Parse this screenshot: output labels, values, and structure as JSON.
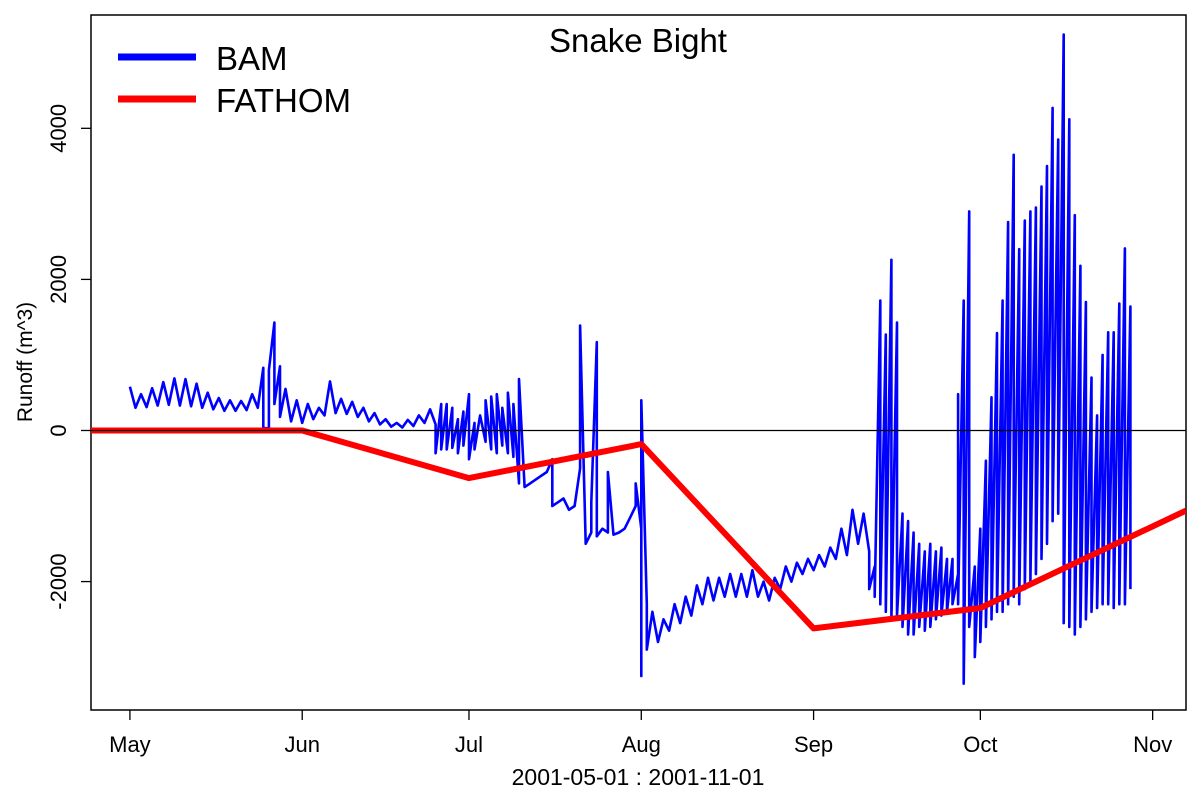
{
  "chart_data": {
    "type": "line",
    "title": "Snake Bight",
    "xlabel": "2001-05-01 : 2001-11-01",
    "ylabel": "Runoff (m^3)",
    "xlim": [
      "2001-04-24",
      "2001-11-07"
    ],
    "ylim": [
      -3700,
      5500
    ],
    "x_ticks": [
      {
        "date": "2001-05-01",
        "label": "May"
      },
      {
        "date": "2001-06-01",
        "label": "Jun"
      },
      {
        "date": "2001-07-01",
        "label": "Jul"
      },
      {
        "date": "2001-08-01",
        "label": "Aug"
      },
      {
        "date": "2001-09-01",
        "label": "Sep"
      },
      {
        "date": "2001-10-01",
        "label": "Oct"
      },
      {
        "date": "2001-11-01",
        "label": "Nov"
      }
    ],
    "y_ticks": [
      {
        "value": -2000,
        "label": "-2000"
      },
      {
        "value": 0,
        "label": "0"
      },
      {
        "value": 2000,
        "label": "2000"
      },
      {
        "value": 4000,
        "label": "4000"
      }
    ],
    "reference_line": 0,
    "legend_position": "top-left",
    "series": [
      {
        "name": "BAM",
        "color": "#0000ff",
        "points": [
          [
            "2001-05-01",
            580
          ],
          [
            "2001-05-02",
            300
          ],
          [
            "2001-05-03",
            480
          ],
          [
            "2001-05-04",
            310
          ],
          [
            "2001-05-05",
            560
          ],
          [
            "2001-05-06",
            330
          ],
          [
            "2001-05-07",
            640
          ],
          [
            "2001-05-08",
            340
          ],
          [
            "2001-05-09",
            690
          ],
          [
            "2001-05-10",
            330
          ],
          [
            "2001-05-11",
            680
          ],
          [
            "2001-05-12",
            320
          ],
          [
            "2001-05-13",
            620
          ],
          [
            "2001-05-14",
            300
          ],
          [
            "2001-05-15",
            500
          ],
          [
            "2001-05-16",
            280
          ],
          [
            "2001-05-17",
            430
          ],
          [
            "2001-05-18",
            260
          ],
          [
            "2001-05-19",
            400
          ],
          [
            "2001-05-20",
            260
          ],
          [
            "2001-05-21",
            390
          ],
          [
            "2001-05-22",
            270
          ],
          [
            "2001-05-23",
            480
          ],
          [
            "2001-05-24",
            300
          ],
          [
            "2001-05-25",
            830
          ],
          [
            "2001-05-25",
            30
          ],
          [
            "2001-05-26",
            30
          ],
          [
            "2001-05-26",
            800
          ],
          [
            "2001-05-27",
            1430
          ],
          [
            "2001-05-27",
            350
          ],
          [
            "2001-05-28",
            850
          ],
          [
            "2001-05-28",
            180
          ],
          [
            "2001-05-29",
            550
          ],
          [
            "2001-05-30",
            120
          ],
          [
            "2001-05-31",
            400
          ],
          [
            "2001-06-01",
            100
          ],
          [
            "2001-06-02",
            350
          ],
          [
            "2001-06-03",
            150
          ],
          [
            "2001-06-04",
            300
          ],
          [
            "2001-06-05",
            200
          ],
          [
            "2001-06-06",
            650
          ],
          [
            "2001-06-07",
            230
          ],
          [
            "2001-06-08",
            420
          ],
          [
            "2001-06-09",
            220
          ],
          [
            "2001-06-10",
            380
          ],
          [
            "2001-06-11",
            180
          ],
          [
            "2001-06-12",
            300
          ],
          [
            "2001-06-13",
            120
          ],
          [
            "2001-06-14",
            230
          ],
          [
            "2001-06-15",
            80
          ],
          [
            "2001-06-16",
            150
          ],
          [
            "2001-06-17",
            50
          ],
          [
            "2001-06-18",
            100
          ],
          [
            "2001-06-19",
            40
          ],
          [
            "2001-06-20",
            140
          ],
          [
            "2001-06-21",
            60
          ],
          [
            "2001-06-22",
            200
          ],
          [
            "2001-06-23",
            100
          ],
          [
            "2001-06-24",
            280
          ],
          [
            "2001-06-25",
            80
          ],
          [
            "2001-06-25",
            -300
          ],
          [
            "2001-06-26",
            350
          ],
          [
            "2001-06-26",
            -250
          ],
          [
            "2001-06-27",
            350
          ],
          [
            "2001-06-27",
            -250
          ],
          [
            "2001-06-28",
            300
          ],
          [
            "2001-06-28",
            -230
          ],
          [
            "2001-06-29",
            150
          ],
          [
            "2001-06-29",
            -300
          ],
          [
            "2001-06-30",
            250
          ],
          [
            "2001-06-30",
            -200
          ],
          [
            "2001-07-01",
            480
          ],
          [
            "2001-07-01",
            -380
          ],
          [
            "2001-07-02",
            100
          ],
          [
            "2001-07-02",
            -250
          ],
          [
            "2001-07-03",
            200
          ],
          [
            "2001-07-04",
            -150
          ],
          [
            "2001-07-04",
            400
          ],
          [
            "2001-07-05",
            -250
          ],
          [
            "2001-07-05",
            450
          ],
          [
            "2001-07-06",
            -300
          ],
          [
            "2001-07-06",
            480
          ],
          [
            "2001-07-07",
            -200
          ],
          [
            "2001-07-07",
            300
          ],
          [
            "2001-07-08",
            -300
          ],
          [
            "2001-07-08",
            500
          ],
          [
            "2001-07-09",
            -350
          ],
          [
            "2001-07-09",
            350
          ],
          [
            "2001-07-10",
            -700
          ],
          [
            "2001-07-10",
            680
          ],
          [
            "2001-07-11",
            -750
          ],
          [
            "2001-07-12",
            -700
          ],
          [
            "2001-07-13",
            -650
          ],
          [
            "2001-07-14",
            -600
          ],
          [
            "2001-07-15",
            -550
          ],
          [
            "2001-07-16",
            -380
          ],
          [
            "2001-07-16",
            -1000
          ],
          [
            "2001-07-17",
            -950
          ],
          [
            "2001-07-18",
            -900
          ],
          [
            "2001-07-19",
            -1050
          ],
          [
            "2001-07-20",
            -1000
          ],
          [
            "2001-07-21",
            -500
          ],
          [
            "2001-07-21",
            1390
          ],
          [
            "2001-07-22",
            -1500
          ],
          [
            "2001-07-23",
            -1350
          ],
          [
            "2001-07-23",
            -950
          ],
          [
            "2001-07-24",
            1170
          ],
          [
            "2001-07-24",
            -1400
          ],
          [
            "2001-07-25",
            -1300
          ],
          [
            "2001-07-26",
            -1350
          ],
          [
            "2001-07-26",
            -550
          ],
          [
            "2001-07-27",
            -1380
          ],
          [
            "2001-07-28",
            -1350
          ],
          [
            "2001-07-29",
            -1300
          ],
          [
            "2001-07-30",
            -1150
          ],
          [
            "2001-07-31",
            -1000
          ],
          [
            "2001-07-31",
            -700
          ],
          [
            "2001-08-01",
            -1300
          ],
          [
            "2001-08-01",
            -3250
          ],
          [
            "2001-08-01",
            400
          ],
          [
            "2001-08-02",
            -2300
          ],
          [
            "2001-08-02",
            -2900
          ],
          [
            "2001-08-03",
            -2400
          ],
          [
            "2001-08-04",
            -2800
          ],
          [
            "2001-08-05",
            -2500
          ],
          [
            "2001-08-06",
            -2650
          ],
          [
            "2001-08-07",
            -2300
          ],
          [
            "2001-08-08",
            -2550
          ],
          [
            "2001-08-09",
            -2200
          ],
          [
            "2001-08-10",
            -2450
          ],
          [
            "2001-08-11",
            -2050
          ],
          [
            "2001-08-12",
            -2300
          ],
          [
            "2001-08-13",
            -1950
          ],
          [
            "2001-08-14",
            -2250
          ],
          [
            "2001-08-15",
            -1950
          ],
          [
            "2001-08-16",
            -2200
          ],
          [
            "2001-08-17",
            -1900
          ],
          [
            "2001-08-18",
            -2200
          ],
          [
            "2001-08-19",
            -1900
          ],
          [
            "2001-08-20",
            -2200
          ],
          [
            "2001-08-21",
            -1850
          ],
          [
            "2001-08-22",
            -2200
          ],
          [
            "2001-08-23",
            -2000
          ],
          [
            "2001-08-24",
            -2250
          ],
          [
            "2001-08-25",
            -1950
          ],
          [
            "2001-08-26",
            -2100
          ],
          [
            "2001-08-27",
            -1800
          ],
          [
            "2001-08-28",
            -2000
          ],
          [
            "2001-08-29",
            -1750
          ],
          [
            "2001-08-30",
            -1900
          ],
          [
            "2001-08-31",
            -1700
          ],
          [
            "2001-09-01",
            -1850
          ],
          [
            "2001-09-02",
            -1650
          ],
          [
            "2001-09-03",
            -1800
          ],
          [
            "2001-09-04",
            -1550
          ],
          [
            "2001-09-05",
            -1700
          ],
          [
            "2001-09-06",
            -1300
          ],
          [
            "2001-09-07",
            -1650
          ],
          [
            "2001-09-08",
            -1050
          ],
          [
            "2001-09-09",
            -1500
          ],
          [
            "2001-09-10",
            -1100
          ],
          [
            "2001-09-11",
            -1600
          ],
          [
            "2001-09-11",
            -2100
          ],
          [
            "2001-09-12",
            -1800
          ],
          [
            "2001-09-12",
            -2200
          ],
          [
            "2001-09-13",
            1720
          ],
          [
            "2001-09-13",
            -2300
          ],
          [
            "2001-09-14",
            1270
          ],
          [
            "2001-09-14",
            -2400
          ],
          [
            "2001-09-15",
            2260
          ],
          [
            "2001-09-15",
            -2500
          ],
          [
            "2001-09-16",
            1430
          ],
          [
            "2001-09-16",
            -2450
          ],
          [
            "2001-09-17",
            -1100
          ],
          [
            "2001-09-17",
            -2600
          ],
          [
            "2001-09-18",
            -1200
          ],
          [
            "2001-09-18",
            -2700
          ],
          [
            "2001-09-19",
            -1350
          ],
          [
            "2001-09-19",
            -2700
          ],
          [
            "2001-09-20",
            -1500
          ],
          [
            "2001-09-20",
            -2600
          ],
          [
            "2001-09-21",
            -1600
          ],
          [
            "2001-09-21",
            -2650
          ],
          [
            "2001-09-22",
            -1500
          ],
          [
            "2001-09-22",
            -2600
          ],
          [
            "2001-09-23",
            -1600
          ],
          [
            "2001-09-23",
            -2500
          ],
          [
            "2001-09-24",
            -1550
          ],
          [
            "2001-09-24",
            -2450
          ],
          [
            "2001-09-25",
            -1700
          ],
          [
            "2001-09-25",
            -2400
          ],
          [
            "2001-09-26",
            -1700
          ],
          [
            "2001-09-26",
            -2300
          ],
          [
            "2001-09-27",
            -1900
          ],
          [
            "2001-09-27",
            480
          ],
          [
            "2001-09-27",
            -2300
          ],
          [
            "2001-09-28",
            1720
          ],
          [
            "2001-09-28",
            -3350
          ],
          [
            "2001-09-29",
            2900
          ],
          [
            "2001-09-29",
            -2600
          ],
          [
            "2001-09-30",
            -1800
          ],
          [
            "2001-09-30",
            -3000
          ],
          [
            "2001-10-01",
            -1300
          ],
          [
            "2001-10-01",
            -2800
          ],
          [
            "2001-10-02",
            -400
          ],
          [
            "2001-10-02",
            -2600
          ],
          [
            "2001-10-03",
            440
          ],
          [
            "2001-10-03",
            -2500
          ],
          [
            "2001-10-04",
            1290
          ],
          [
            "2001-10-04",
            -2400
          ],
          [
            "2001-10-05",
            1720
          ],
          [
            "2001-10-05",
            -2400
          ],
          [
            "2001-10-06",
            2760
          ],
          [
            "2001-10-06",
            -2300
          ],
          [
            "2001-10-07",
            3650
          ],
          [
            "2001-10-07",
            -2200
          ],
          [
            "2001-10-08",
            2400
          ],
          [
            "2001-10-08",
            -2300
          ],
          [
            "2001-10-09",
            2780
          ],
          [
            "2001-10-09",
            -2100
          ],
          [
            "2001-10-10",
            2900
          ],
          [
            "2001-10-10",
            -2000
          ],
          [
            "2001-10-11",
            2950
          ],
          [
            "2001-10-11",
            -1900
          ],
          [
            "2001-10-12",
            3230
          ],
          [
            "2001-10-12",
            -1700
          ],
          [
            "2001-10-13",
            3500
          ],
          [
            "2001-10-13",
            -1500
          ],
          [
            "2001-10-14",
            4270
          ],
          [
            "2001-10-14",
            -1200
          ],
          [
            "2001-10-15",
            3850
          ],
          [
            "2001-10-15",
            -1100
          ],
          [
            "2001-10-16",
            5240
          ],
          [
            "2001-10-16",
            -2550
          ],
          [
            "2001-10-17",
            4120
          ],
          [
            "2001-10-17",
            -2600
          ],
          [
            "2001-10-18",
            2850
          ],
          [
            "2001-10-18",
            -2700
          ],
          [
            "2001-10-19",
            2180
          ],
          [
            "2001-10-19",
            -2600
          ],
          [
            "2001-10-20",
            1700
          ],
          [
            "2001-10-20",
            -2500
          ],
          [
            "2001-10-21",
            700
          ],
          [
            "2001-10-21",
            -2400
          ],
          [
            "2001-10-22",
            200
          ],
          [
            "2001-10-22",
            -2350
          ],
          [
            "2001-10-23",
            1000
          ],
          [
            "2001-10-23",
            -2300
          ],
          [
            "2001-10-24",
            1300
          ],
          [
            "2001-10-24",
            -2300
          ],
          [
            "2001-10-25",
            1300
          ],
          [
            "2001-10-25",
            -2350
          ],
          [
            "2001-10-26",
            1680
          ],
          [
            "2001-10-26",
            -2300
          ],
          [
            "2001-10-27",
            2410
          ],
          [
            "2001-10-27",
            -2300
          ],
          [
            "2001-10-28",
            1640
          ],
          [
            "2001-10-28",
            -2100
          ]
        ]
      },
      {
        "name": "FATHOM",
        "color": "#ff0000",
        "points": [
          [
            "2001-04-24",
            0
          ],
          [
            "2001-06-01",
            0
          ],
          [
            "2001-07-01",
            -630
          ],
          [
            "2001-08-01",
            -180
          ],
          [
            "2001-09-01",
            -2620
          ],
          [
            "2001-10-01",
            -2350
          ],
          [
            "2001-11-01",
            -1270
          ],
          [
            "2001-11-07",
            -1060
          ]
        ]
      }
    ]
  }
}
